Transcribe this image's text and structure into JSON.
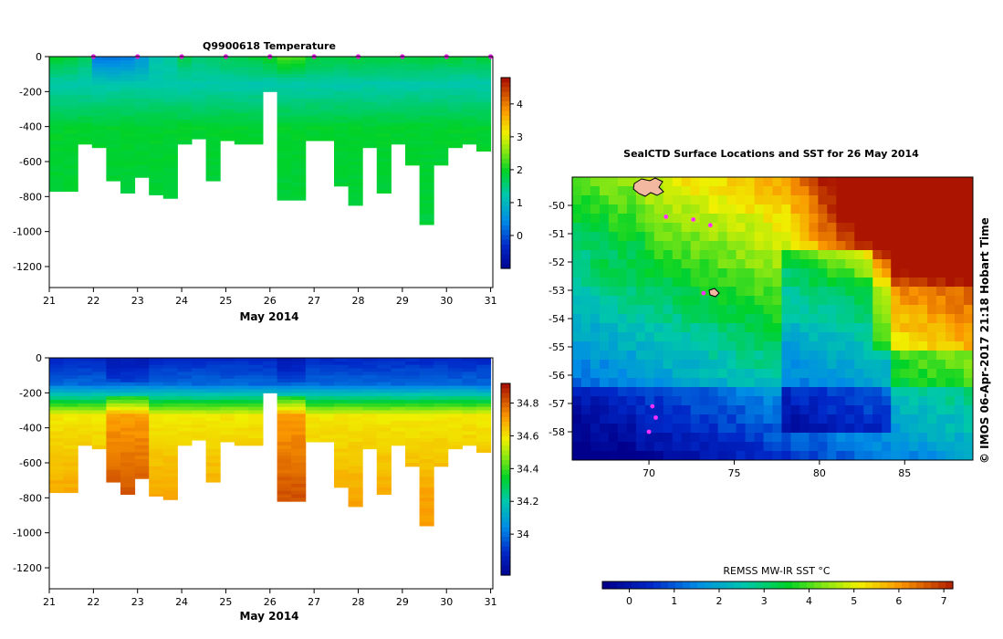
{
  "chart_data": [
    {
      "type": "heatmap",
      "title": "Q9900618  Temperature",
      "xlabel": "May 2014",
      "ylabel": "",
      "xlim": [
        21,
        31.05
      ],
      "ylim": [
        -1320,
        0
      ],
      "xticks": [
        "21",
        "22",
        "23",
        "24",
        "25",
        "26",
        "27",
        "28",
        "29",
        "30",
        "31"
      ],
      "yticks": [
        "0",
        "-200",
        "-400",
        "-600",
        "-800",
        "-1000",
        "-1200"
      ],
      "colorbar": {
        "min": -1,
        "max": 4.8,
        "ticks": [
          "0",
          "1",
          "2",
          "3",
          "4"
        ]
      },
      "markers": [
        22,
        23,
        24,
        25,
        26,
        27,
        28,
        29,
        30,
        31
      ],
      "profile_max_depth": [
        770,
        770,
        500,
        520,
        710,
        780,
        690,
        790,
        810,
        500,
        470,
        710,
        480,
        500,
        500,
        200,
        820,
        820,
        480,
        480,
        740,
        850,
        520,
        780,
        500,
        620,
        960,
        620,
        520,
        500,
        540
      ],
      "profile_surface_temp": [
        2.0,
        1.9,
        1.7,
        0.4,
        0.4,
        0.4,
        0.7,
        1.3,
        1.4,
        1.8,
        1.6,
        1.7,
        1.8,
        1.8,
        1.9,
        2.0,
        2.3,
        2.3,
        1.9,
        1.9,
        1.9,
        1.9,
        1.9,
        1.9,
        1.9,
        1.9,
        1.9,
        1.9,
        1.9,
        1.8,
        1.9
      ],
      "deep_temp": 2.0
    },
    {
      "type": "heatmap",
      "title": "",
      "xlabel": "May 2014",
      "ylabel": "",
      "xlim": [
        21,
        31.05
      ],
      "ylim": [
        -1320,
        0
      ],
      "xticks": [
        "21",
        "22",
        "23",
        "24",
        "25",
        "26",
        "27",
        "28",
        "29",
        "30",
        "31"
      ],
      "yticks": [
        "0",
        "-200",
        "-400",
        "-600",
        "-800",
        "-1000",
        "-1200"
      ],
      "colorbar": {
        "min": 33.75,
        "max": 34.92,
        "ticks": [
          "34",
          "34.2",
          "34.4",
          "34.6",
          "34.8"
        ]
      },
      "surface_salinity": 33.9,
      "deep_salinity": 34.72
    },
    {
      "type": "heatmap",
      "title": "SealCTD Surface Locations and SST for 26 May 2014",
      "xlabel": "",
      "ylabel": "",
      "xlim": [
        65.5,
        89
      ],
      "ylim": [
        -59,
        -49
      ],
      "xticks": [
        "70",
        "75",
        "80",
        "85"
      ],
      "yticks": [
        "-50",
        "-51",
        "-52",
        "-53",
        "-54",
        "-55",
        "-56",
        "-57",
        "-58"
      ],
      "colorbar": {
        "label": "REMSS MW-IR SST °C",
        "min": -0.6,
        "max": 7.2,
        "ticks": [
          "0",
          "1",
          "2",
          "3",
          "4",
          "5",
          "6",
          "7"
        ]
      },
      "seal_locations": [
        [
          71,
          -50.4
        ],
        [
          72.6,
          -50.5
        ],
        [
          73.6,
          -50.7
        ],
        [
          73.2,
          -53.1
        ],
        [
          70.2,
          -57.1
        ],
        [
          70.4,
          -57.5
        ],
        [
          70.0,
          -58.0
        ]
      ],
      "credit": "©  IMOS 06-Apr-2017 21:18 Hobart Time"
    }
  ]
}
